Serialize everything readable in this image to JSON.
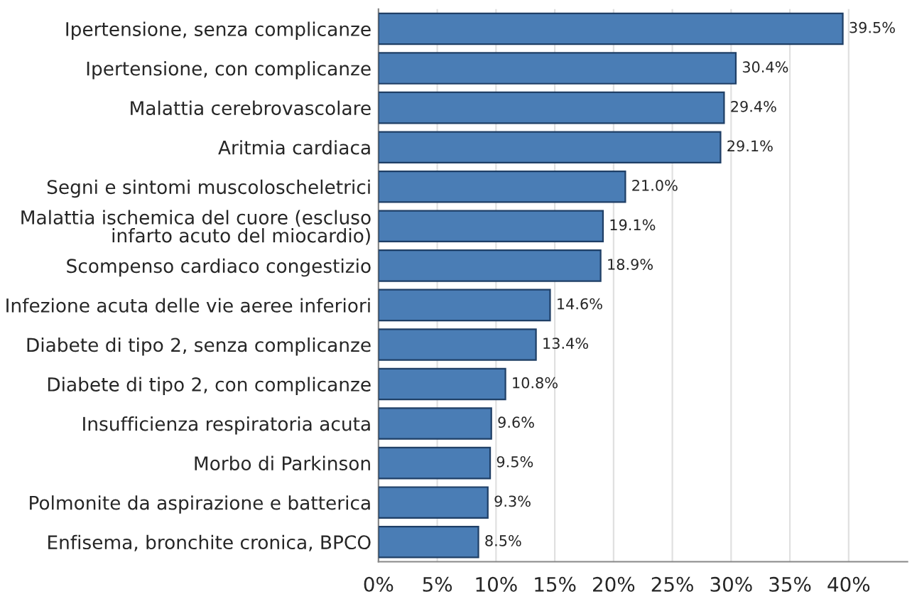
{
  "chart_data": {
    "type": "bar",
    "orientation": "horizontal",
    "categories": [
      "Ipertensione, senza complicanze",
      "Ipertensione, con complicanze",
      "Malattia cerebrovascolare",
      "Aritmia cardiaca",
      "Segni e sintomi muscoloscheletrici",
      "Malattia ischemica del cuore (escluso\ninfarto acuto del miocardio)",
      "Scompenso cardiaco congestizio",
      "Infezione acuta delle vie aeree inferiori",
      "Diabete di tipo 2, senza complicanze",
      "Diabete di tipo 2, con complicanze",
      "Insufficienza respiratoria acuta",
      "Morbo di Parkinson",
      "Polmonite da aspirazione e batterica",
      "Enfisema, bronchite cronica, BPCO"
    ],
    "values": [
      39.5,
      30.4,
      29.4,
      29.1,
      21.0,
      19.1,
      18.9,
      14.6,
      13.4,
      10.8,
      9.6,
      9.5,
      9.3,
      8.5
    ],
    "value_labels": [
      "39.5%",
      "30.4%",
      "29.4%",
      "29.1%",
      "21.0%",
      "19.1%",
      "18.9%",
      "14.6%",
      "13.4%",
      "10.8%",
      "9.6%",
      "9.5%",
      "9.3%",
      "8.5%"
    ],
    "color": "#4a7db5",
    "xlim": [
      0,
      45
    ],
    "xticks": [
      {
        "value": 0,
        "label": "0%"
      },
      {
        "value": 5,
        "label": "5%"
      },
      {
        "value": 10,
        "label": "10%"
      },
      {
        "value": 15,
        "label": "15%"
      },
      {
        "value": 20,
        "label": "20%"
      },
      {
        "value": 25,
        "label": "25%"
      },
      {
        "value": 30,
        "label": "30%"
      },
      {
        "value": 35,
        "label": "35%"
      },
      {
        "value": 40,
        "label": "40%"
      }
    ],
    "grid": "x"
  }
}
